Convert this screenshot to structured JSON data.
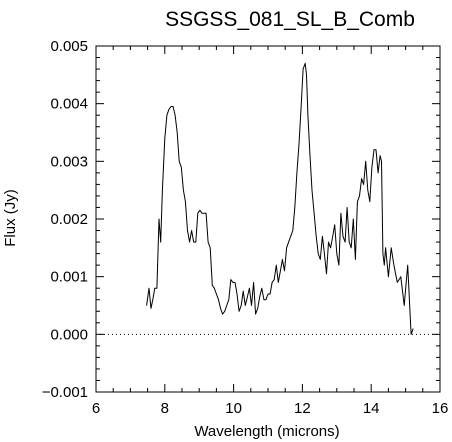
{
  "chart_data": {
    "type": "line",
    "title": "SSGSS_081_SL_B_Comb",
    "xlabel": "Wavelength (microns)",
    "ylabel": "Flux (Jy)",
    "xlim": [
      6,
      16
    ],
    "ylim": [
      -0.001,
      0.005
    ],
    "x_ticks": [
      6,
      8,
      10,
      12,
      14,
      16
    ],
    "x_tick_labels": [
      "6",
      "8",
      "10",
      "12",
      "14",
      "16"
    ],
    "y_ticks": [
      -0.001,
      0.0,
      0.001,
      0.002,
      0.003,
      0.004,
      0.005
    ],
    "y_tick_labels": [
      "−0.001",
      "0.000",
      "0.001",
      "0.002",
      "0.003",
      "0.004",
      "0.005"
    ],
    "zero_line": "dotted",
    "grid": false,
    "series": [
      {
        "x": [
          7.47,
          7.54,
          7.6,
          7.65,
          7.71,
          7.77,
          7.83,
          7.88,
          7.93,
          8.0,
          8.06,
          8.12,
          8.18,
          8.24,
          8.3,
          8.36,
          8.42,
          8.48,
          8.54,
          8.6,
          8.66,
          8.72,
          8.78,
          8.84,
          8.9,
          8.96,
          9.02,
          9.08,
          9.14,
          9.2,
          9.26,
          9.32,
          9.38,
          9.44,
          9.5,
          9.56,
          9.62,
          9.68,
          9.74,
          9.8,
          9.86,
          9.92,
          9.98,
          10.04,
          10.1,
          10.16,
          10.22,
          10.28,
          10.34,
          10.4,
          10.46,
          10.52,
          10.58,
          10.64,
          10.7,
          10.76,
          10.82,
          10.88,
          10.94,
          11.0,
          11.06,
          11.12,
          11.18,
          11.24,
          11.3,
          11.36,
          11.42,
          11.48,
          11.54,
          11.6,
          11.66,
          11.72,
          11.78,
          11.84,
          11.9,
          11.96,
          12.02,
          12.08,
          12.12,
          12.16,
          12.22,
          12.28,
          12.34,
          12.4,
          12.46,
          12.52,
          12.58,
          12.64,
          12.7,
          12.76,
          12.82,
          12.88,
          12.94,
          13.0,
          13.06,
          13.12,
          13.18,
          13.24,
          13.3,
          13.36,
          13.42,
          13.48,
          13.54,
          13.6,
          13.66,
          13.72,
          13.78,
          13.84,
          13.9,
          13.96,
          14.02,
          14.08,
          14.14,
          14.2,
          14.26,
          14.3,
          14.34,
          14.38,
          14.42,
          14.5,
          14.58,
          14.66,
          14.76,
          14.86,
          14.96,
          15.06,
          15.16,
          15.22
        ],
        "y": [
          0.0005,
          0.0008,
          0.00045,
          0.0006,
          0.0008,
          0.0008,
          0.002,
          0.0016,
          0.0025,
          0.0034,
          0.0038,
          0.0039,
          0.00395,
          0.00395,
          0.0038,
          0.0035,
          0.003,
          0.0029,
          0.0025,
          0.0023,
          0.0018,
          0.0016,
          0.0018,
          0.0016,
          0.0016,
          0.0021,
          0.00215,
          0.0021,
          0.0021,
          0.0021,
          0.0016,
          0.0015,
          0.00085,
          0.0008,
          0.0007,
          0.0006,
          0.00045,
          0.00035,
          0.0004,
          0.0005,
          0.0006,
          0.00095,
          0.0009,
          0.0009,
          0.0007,
          0.0004,
          0.0005,
          0.00075,
          0.0005,
          0.00065,
          0.0008,
          0.0005,
          0.0009,
          0.00035,
          0.00045,
          0.00065,
          0.0008,
          0.0006,
          0.0006,
          0.0007,
          0.0007,
          0.0009,
          0.00095,
          0.0012,
          0.0009,
          0.0011,
          0.0013,
          0.0011,
          0.0015,
          0.0016,
          0.0017,
          0.0018,
          0.0022,
          0.0028,
          0.0033,
          0.0039,
          0.0046,
          0.0047,
          0.0045,
          0.0038,
          0.0031,
          0.0025,
          0.0021,
          0.0017,
          0.0014,
          0.0013,
          0.0017,
          0.0014,
          0.00105,
          0.0016,
          0.0015,
          0.0017,
          0.0019,
          0.0014,
          0.0012,
          0.0021,
          0.0017,
          0.0016,
          0.0022,
          0.0016,
          0.0015,
          0.002,
          0.0013,
          0.0023,
          0.0024,
          0.0027,
          0.0026,
          0.003,
          0.0025,
          0.0023,
          0.0029,
          0.0032,
          0.0032,
          0.0028,
          0.0031,
          0.003,
          0.0014,
          0.0012,
          0.0015,
          0.001,
          0.0015,
          0.0012,
          0.0009,
          0.001,
          0.0005,
          0.0012,
          0.0,
          0.0001
        ]
      }
    ]
  }
}
